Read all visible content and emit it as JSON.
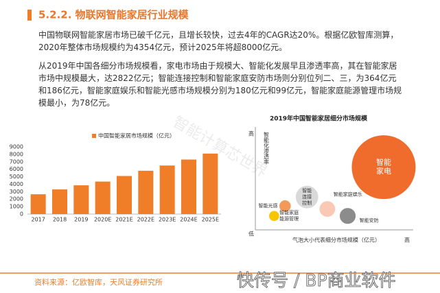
{
  "title": "5.2.2. 物联网智能家居行业规模",
  "paragraphs": [
    "中国物联网智能家居市场已破千亿元，且增长较快，过去4年的CAGR达20%。根据亿欧智库测算，2020年整体市场规模约为4354亿元，预计2025年将超8000亿元。",
    "从2019年中国各细分市场规模看，家电市场由于规模大、智能化发展早且渗透率高，其在智能家居市场中规模最大，达2822亿元；智能连接控制和智能家庭安防市场则分别位列二、三，为364亿元和186亿元，智能家庭娱乐和智能光感市场规模分别为180亿元和99亿元，智能家庭能源管理市场规模最小，为78亿元。"
  ],
  "source": "资料来源：亿欧智库，天风证券研究所",
  "watermarks": [
    "智能计算芯世界",
    "快传号 / BP商业软件"
  ],
  "chart_data": [
    {
      "type": "bar",
      "categories": [
        "2017",
        "2018",
        "2019",
        "2020E",
        "2021E",
        "2022E",
        "2023E",
        "2024E",
        "2025E"
      ],
      "series": [
        {
          "name": "中国智能家居市场规模（亿元）",
          "color": "#f07d28",
          "values": [
            2650,
            3300,
            3850,
            4354,
            5100,
            5800,
            6500,
            7300,
            8100
          ]
        }
      ],
      "ylim": [
        0,
        9000
      ],
      "yticks": [
        0,
        1000,
        2000,
        3000,
        4000,
        5000,
        6000,
        7000,
        8000,
        9000
      ]
    },
    {
      "type": "bubble",
      "title": "2019年中国智能家居细分市场规模",
      "y_label": "智能化渗透率",
      "y_high": "高",
      "y_low": "低",
      "x_label": "气泡大小代表细分市场规模（亿元）",
      "x_high": "高",
      "xlim": [
        0,
        10
      ],
      "ylim": [
        0,
        10
      ],
      "series": [
        {
          "name": "智能家电",
          "color": "#ef6c2c",
          "x": [
            8.2
          ],
          "values": [
            6.3
          ],
          "sizes": [
            2822
          ]
        },
        {
          "name": "智能连接控制",
          "color": "#d9d9d9",
          "x": [
            3.3
          ],
          "values": [
            3.3
          ],
          "sizes": [
            364
          ]
        },
        {
          "name": "智能安防",
          "color": "#8c8c8c",
          "x": [
            5.9
          ],
          "values": [
            1.4
          ],
          "sizes": [
            186
          ]
        },
        {
          "name": "智能家庭娱乐",
          "color": "#f9c9b6",
          "x": [
            4.6
          ],
          "values": [
            2.1
          ],
          "sizes": [
            180
          ]
        },
        {
          "name": "智能光感",
          "color": "#f39a5a",
          "x": [
            1.9
          ],
          "values": [
            2.4
          ],
          "sizes": [
            99
          ]
        },
        {
          "name": "智能家庭能源管理",
          "color": "#f7c600",
          "x": [
            1.2
          ],
          "values": [
            1.4
          ],
          "sizes": [
            78
          ]
        }
      ]
    }
  ]
}
